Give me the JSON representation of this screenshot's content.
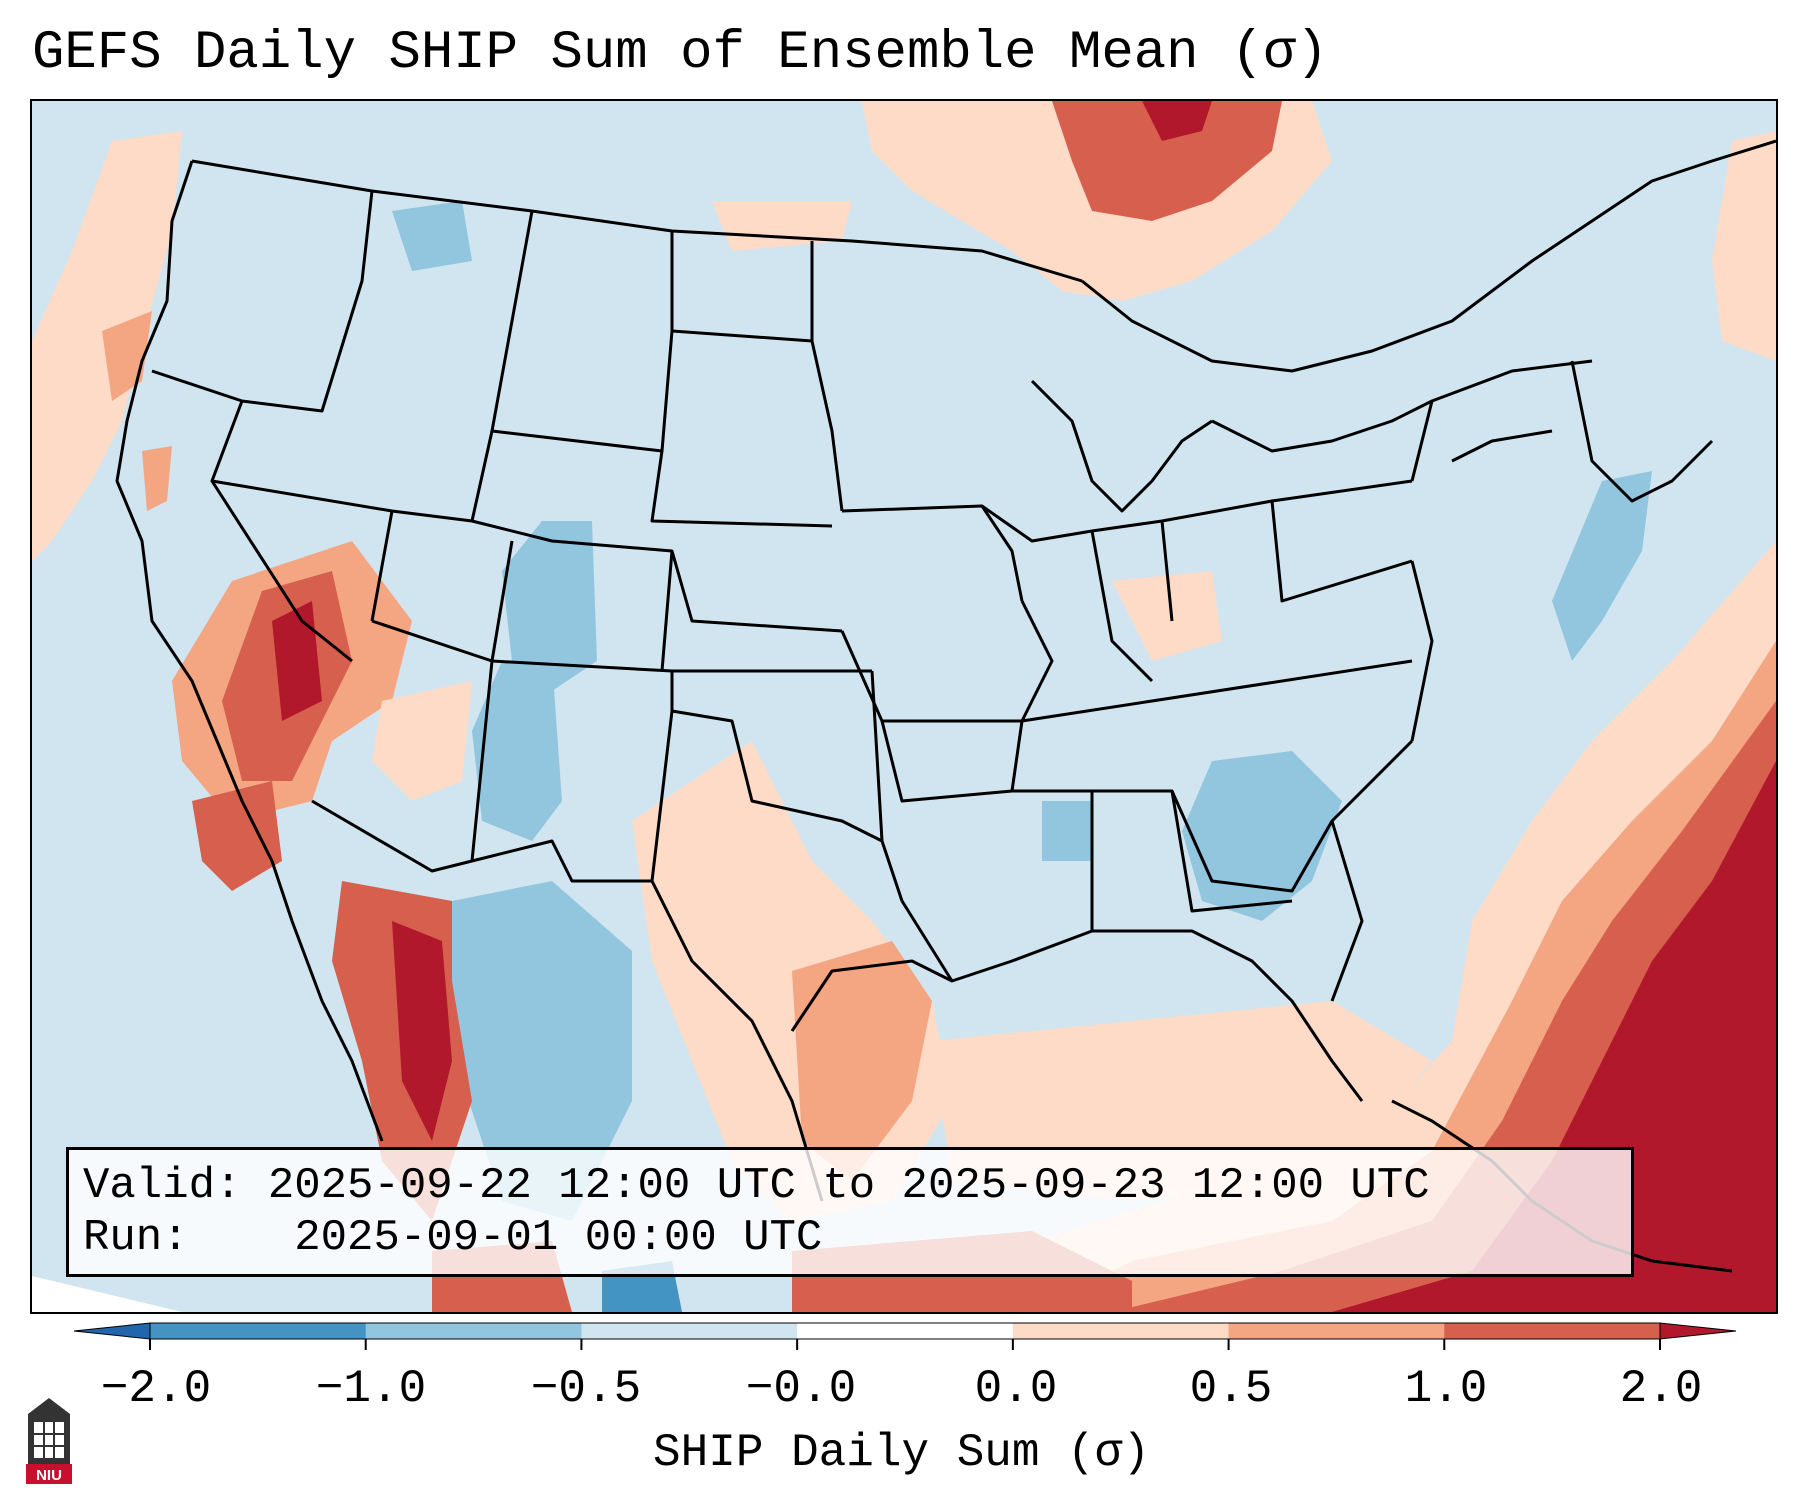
{
  "title": "GEFS Daily SHIP Sum of Ensemble Mean (σ)",
  "info": {
    "valid_label": "Valid:",
    "valid_value": "2025-09-22 12:00 UTC to 2025-09-23 12:00 UTC",
    "run_label": "Run:",
    "run_value": "2025-09-01 00:00 UTC"
  },
  "colorbar": {
    "label": "SHIP Daily Sum (σ)",
    "ticks": [
      "−2.0",
      "−1.0",
      "−0.5",
      "−0.0",
      "0.0",
      "0.5",
      "1.0",
      "2.0"
    ],
    "bins": [
      {
        "range": "< -2.0",
        "color": "#2166ac"
      },
      {
        "range": "-2.0 to -1.0",
        "color": "#4393c3"
      },
      {
        "range": "-1.0 to -0.5",
        "color": "#92c5de"
      },
      {
        "range": "-0.5 to -0.0",
        "color": "#d1e5f0"
      },
      {
        "range": "-0.0 to 0.0",
        "color": "#ffffff"
      },
      {
        "range": "0.0 to 0.5",
        "color": "#fddbc7"
      },
      {
        "range": "0.5 to 1.0",
        "color": "#f4a582"
      },
      {
        "range": "1.0 to 2.0",
        "color": "#d6604d"
      },
      {
        "range": "> 2.0",
        "color": "#b2182b"
      }
    ]
  },
  "logo": {
    "text": "NIU",
    "icon": "niu-tower-logo"
  }
}
